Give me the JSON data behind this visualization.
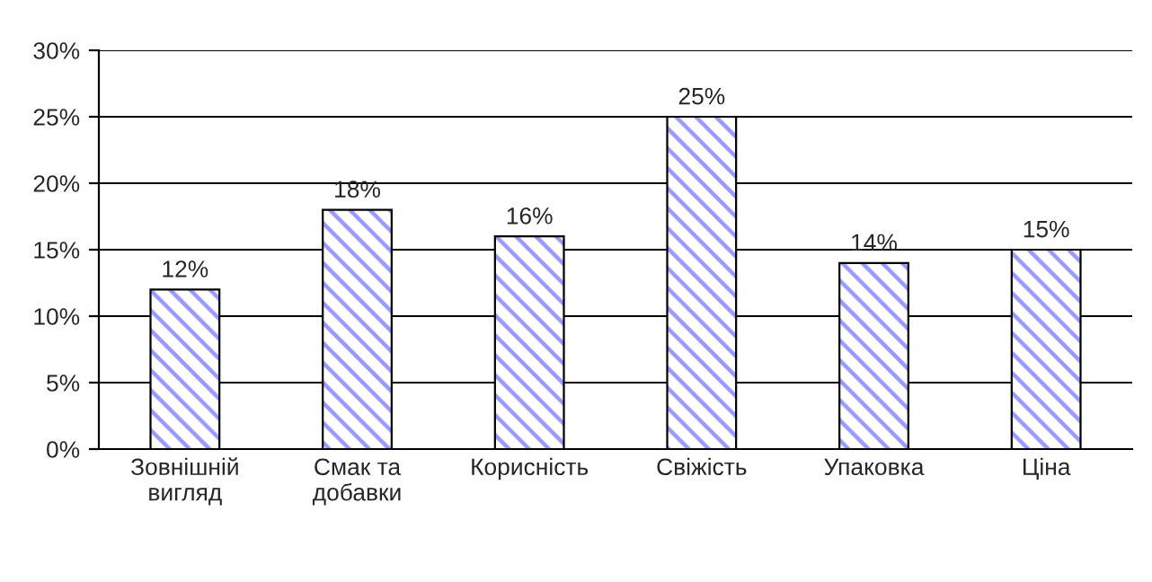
{
  "chart_data": {
    "type": "bar",
    "categories": [
      "Зовнішній\nвигляд",
      "Смак та\nдобавки",
      "Корисність",
      "Свіжість",
      "Упаковка",
      "Ціна"
    ],
    "values": [
      12,
      18,
      16,
      25,
      14,
      15
    ],
    "value_labels": [
      "12%",
      "18%",
      "16%",
      "25%",
      "14%",
      "15%"
    ],
    "color": "#9999ff",
    "ylim": [
      0,
      30
    ],
    "yticks": [
      {
        "value": 0,
        "label": "0%"
      },
      {
        "value": 5,
        "label": "5%"
      },
      {
        "value": 10,
        "label": "10%"
      },
      {
        "value": 15,
        "label": "15%"
      },
      {
        "value": 20,
        "label": "20%"
      },
      {
        "value": 25,
        "label": "25%"
      },
      {
        "value": 30,
        "label": "30%"
      }
    ],
    "grid": "y"
  }
}
